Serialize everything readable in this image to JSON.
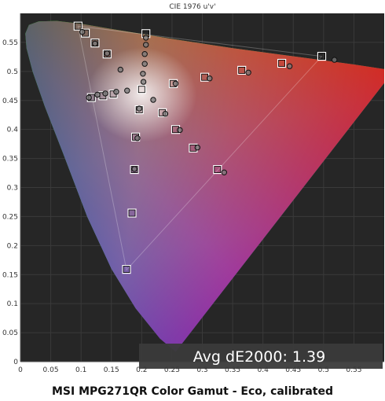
{
  "chart_data": {
    "type": "scatter",
    "title": "CIE 1976 u'v'",
    "caption": "MSI MPG271QR Color Gamut - Eco, calibrated",
    "score_label": "Avg dE2000: 1.39",
    "xlim": [
      0,
      0.6
    ],
    "ylim": [
      0,
      0.6
    ],
    "x_ticks": [
      0,
      0.05,
      0.1,
      0.15,
      0.2,
      0.25,
      0.3,
      0.35,
      0.4,
      0.45,
      0.5,
      0.55
    ],
    "x_tick_labels": [
      "0",
      "0.05",
      "0.1",
      "0.15",
      "0.2",
      "0.25",
      "0.3",
      "0.35",
      "0.4",
      "0.45",
      "0.5",
      "0.55"
    ],
    "y_ticks": [
      0,
      0.05,
      0.1,
      0.15,
      0.2,
      0.25,
      0.3,
      0.35,
      0.4,
      0.45,
      0.5,
      0.55
    ],
    "y_tick_labels": [
      "0",
      "0.05",
      "0.1",
      "0.15",
      "0.2",
      "0.25",
      "0.3",
      "0.35",
      "0.4",
      "0.45",
      "0.5",
      "0.55"
    ],
    "grid": true,
    "gamut_triangle": [
      [
        0.175,
        0.158
      ],
      [
        0.095,
        0.578
      ],
      [
        0.497,
        0.526
      ]
    ],
    "series": [
      {
        "marker": "square",
        "points": [
          [
            0.175,
            0.159
          ],
          [
            0.184,
            0.256
          ],
          [
            0.188,
            0.331
          ],
          [
            0.19,
            0.387
          ],
          [
            0.196,
            0.434
          ],
          [
            0.2,
            0.469
          ],
          [
            0.207,
            0.565
          ],
          [
            0.095,
            0.578
          ],
          [
            0.107,
            0.566
          ],
          [
            0.123,
            0.549
          ],
          [
            0.143,
            0.53
          ],
          [
            0.117,
            0.455
          ],
          [
            0.136,
            0.458
          ],
          [
            0.153,
            0.461
          ],
          [
            0.234,
            0.429
          ],
          [
            0.256,
            0.4
          ],
          [
            0.285,
            0.368
          ],
          [
            0.325,
            0.331
          ],
          [
            0.252,
            0.479
          ],
          [
            0.304,
            0.49
          ],
          [
            0.365,
            0.502
          ],
          [
            0.431,
            0.514
          ],
          [
            0.497,
            0.526
          ]
        ]
      },
      {
        "marker": "circle",
        "points": [
          [
            0.193,
            0.385
          ],
          [
            0.188,
            0.332
          ],
          [
            0.196,
            0.436
          ],
          [
            0.203,
            0.482
          ],
          [
            0.202,
            0.496
          ],
          [
            0.205,
            0.513
          ],
          [
            0.205,
            0.53
          ],
          [
            0.207,
            0.546
          ],
          [
            0.207,
            0.558
          ],
          [
            0.102,
            0.568
          ],
          [
            0.123,
            0.548
          ],
          [
            0.143,
            0.531
          ],
          [
            0.165,
            0.503
          ],
          [
            0.113,
            0.455
          ],
          [
            0.127,
            0.46
          ],
          [
            0.14,
            0.462
          ],
          [
            0.158,
            0.465
          ],
          [
            0.176,
            0.467
          ],
          [
            0.219,
            0.451
          ],
          [
            0.239,
            0.427
          ],
          [
            0.263,
            0.399
          ],
          [
            0.292,
            0.369
          ],
          [
            0.336,
            0.326
          ],
          [
            0.256,
            0.479
          ],
          [
            0.312,
            0.488
          ],
          [
            0.376,
            0.498
          ],
          [
            0.444,
            0.509
          ],
          [
            0.518,
            0.52
          ]
        ]
      }
    ]
  }
}
